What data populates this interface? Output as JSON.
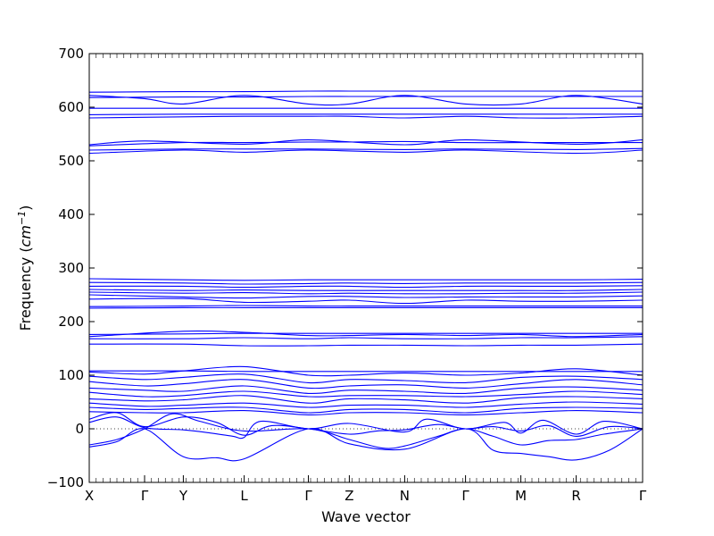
{
  "chart_data": {
    "type": "line",
    "title": "",
    "xlabel": "Wave vector",
    "ylabel": "Frequency ($cm^{-1}$)",
    "ylabel_parts": {
      "text": "Frequency (",
      "unit_base": "cm",
      "unit_exp": "−1",
      "close": ")"
    },
    "ylim": [
      -100,
      700
    ],
    "yticks": [
      -100,
      0,
      100,
      200,
      300,
      400,
      500,
      600,
      700
    ],
    "xlim": [
      0,
      10
    ],
    "kpoints": [
      {
        "label": "X",
        "x": 0
      },
      {
        "label": "Γ",
        "x": 1
      },
      {
        "label": "Y",
        "x": 1.7
      },
      {
        "label": "L",
        "x": 2.8
      },
      {
        "label": "Γ",
        "x": 3.96
      },
      {
        "label": "Z",
        "x": 4.7
      },
      {
        "label": "N",
        "x": 5.7
      },
      {
        "label": "Γ",
        "x": 6.8
      },
      {
        "label": "M",
        "x": 7.8
      },
      {
        "label": "R",
        "x": 8.8
      },
      {
        "label": "Γ",
        "x": 10
      }
    ],
    "zero_line": true,
    "line_color": "#0000ff",
    "series": [
      {
        "x": [
          0,
          1.7,
          2.8,
          3.96,
          4.7,
          5.7,
          6.8,
          7.8,
          8.8,
          10
        ],
        "y": [
          628,
          629,
          629,
          630,
          630,
          630,
          630,
          630,
          630,
          630
        ]
      },
      {
        "x": [
          0,
          1,
          1.7,
          2.8,
          3.96,
          4.7,
          5.7,
          6.8,
          7.8,
          8.8,
          10
        ],
        "y": [
          622,
          616,
          606,
          622,
          606,
          606,
          622,
          606,
          606,
          622,
          606
        ]
      },
      {
        "x": [
          0,
          1.7,
          2.8,
          3.96,
          4.7,
          5.7,
          6.8,
          7.8,
          8.8,
          10
        ],
        "y": [
          618,
          619,
          619,
          620,
          620,
          620,
          620,
          620,
          620,
          620
        ]
      },
      {
        "x": [
          0,
          1.7,
          2.8,
          3.96,
          4.7,
          5.7,
          6.8,
          7.8,
          8.8,
          10
        ],
        "y": [
          598,
          598,
          598,
          598,
          598,
          598,
          598,
          598,
          598,
          598
        ]
      },
      {
        "x": [
          0,
          1.7,
          2.8,
          3.96,
          4.7,
          5.7,
          6.8,
          7.8,
          8.8,
          10
        ],
        "y": [
          586,
          587,
          587,
          587,
          587,
          587,
          587,
          587,
          587,
          587
        ]
      },
      {
        "x": [
          0,
          1.7,
          2.8,
          3.96,
          4.7,
          5.7,
          6.8,
          7.8,
          8.8,
          10
        ],
        "y": [
          580,
          582,
          583,
          583,
          583,
          580,
          583,
          580,
          580,
          583
        ]
      },
      {
        "x": [
          0,
          1,
          2.8,
          3.96,
          5.7,
          6.8,
          8.8,
          10
        ],
        "y": [
          530,
          537,
          531,
          539,
          530,
          539,
          531,
          539
        ]
      },
      {
        "x": [
          0,
          1.7,
          2.8,
          3.96,
          4.7,
          5.7,
          6.8,
          7.8,
          8.8,
          10
        ],
        "y": [
          528,
          534,
          534,
          535,
          535,
          536,
          534,
          534,
          534,
          534
        ]
      },
      {
        "x": [
          0,
          1.7,
          2.8,
          3.96,
          5.7,
          6.8,
          8.8,
          10
        ],
        "y": [
          520,
          522,
          522,
          522,
          521,
          522,
          521,
          523
        ]
      },
      {
        "x": [
          0,
          1.7,
          2.8,
          3.96,
          5.7,
          6.8,
          8.8,
          10
        ],
        "y": [
          514,
          520,
          516,
          520,
          516,
          520,
          514,
          520
        ]
      },
      {
        "x": [
          0,
          1.7,
          2.8,
          3.96,
          4.7,
          5.7,
          6.8,
          7.8,
          8.8,
          10
        ],
        "y": [
          280,
          278,
          277,
          278,
          278,
          278,
          278,
          278,
          278,
          279
        ]
      },
      {
        "x": [
          0,
          1.7,
          2.8,
          3.96,
          4.7,
          5.7,
          6.8,
          7.8,
          8.8,
          10
        ],
        "y": [
          273,
          272,
          270,
          271,
          272,
          271,
          272,
          272,
          272,
          273
        ]
      },
      {
        "x": [
          0,
          1.7,
          2.8,
          3.96,
          4.7,
          5.7,
          6.8,
          7.8,
          8.8,
          10
        ],
        "y": [
          266,
          266,
          264,
          266,
          266,
          264,
          266,
          266,
          266,
          267
        ]
      },
      {
        "x": [
          0,
          1.7,
          2.8,
          3.96,
          4.7,
          5.7,
          6.8,
          7.8,
          8.8,
          10
        ],
        "y": [
          260,
          258,
          259,
          258,
          258,
          258,
          258,
          258,
          258,
          260
        ]
      },
      {
        "x": [
          0,
          1.7,
          2.8,
          3.96,
          4.7,
          5.7,
          6.8,
          7.8,
          8.8,
          10
        ],
        "y": [
          255,
          253,
          254,
          252,
          253,
          252,
          252,
          253,
          253,
          255
        ]
      },
      {
        "x": [
          0,
          1.7,
          2.8,
          3.96,
          4.7,
          5.7,
          6.8,
          7.8,
          8.8,
          10
        ],
        "y": [
          250,
          246,
          244,
          247,
          247,
          245,
          246,
          246,
          246,
          248
        ]
      },
      {
        "x": [
          0,
          1.7,
          2.8,
          3.96,
          4.7,
          5.7,
          6.8,
          7.8,
          8.8,
          10
        ],
        "y": [
          242,
          243,
          236,
          238,
          240,
          234,
          240,
          238,
          238,
          240
        ]
      },
      {
        "x": [
          0,
          1.7,
          2.8,
          3.96,
          4.7,
          5.7,
          6.8,
          7.8,
          8.8,
          10
        ],
        "y": [
          228,
          229,
          230,
          229,
          229,
          229,
          229,
          229,
          229,
          229
        ]
      },
      {
        "x": [
          0,
          1.7,
          2.8,
          3.96,
          4.7,
          5.7,
          6.8,
          7.8,
          8.8,
          10
        ],
        "y": [
          225,
          226,
          226,
          226,
          226,
          226,
          226,
          226,
          226,
          226
        ]
      },
      {
        "x": [
          0,
          1.7,
          2.8,
          3.96,
          4.7,
          5.7,
          6.8,
          7.8,
          8.8,
          10
        ],
        "y": [
          176,
          177,
          178,
          178,
          178,
          178,
          178,
          178,
          178,
          178
        ]
      },
      {
        "x": [
          0,
          1.7,
          2.8,
          3.96,
          4.7,
          5.7,
          6.8,
          7.8,
          8.8,
          10
        ],
        "y": [
          172,
          182,
          180,
          174,
          174,
          176,
          174,
          176,
          172,
          176
        ]
      },
      {
        "x": [
          0,
          1.7,
          2.8,
          3.96,
          4.7,
          5.7,
          6.8,
          7.8,
          8.8,
          10
        ],
        "y": [
          168,
          168,
          170,
          168,
          170,
          168,
          168,
          170,
          170,
          172
        ]
      },
      {
        "x": [
          0,
          1.7,
          2.8,
          3.96,
          4.7,
          5.7,
          6.8,
          7.8,
          8.8,
          10
        ],
        "y": [
          158,
          158,
          155,
          155,
          156,
          156,
          155,
          156,
          156,
          158
        ]
      },
      {
        "x": [
          0,
          1.7,
          2.8,
          3.96,
          4.7,
          5.7,
          6.8,
          7.8,
          8.8,
          10
        ],
        "y": [
          108,
          108,
          107,
          107,
          107,
          107,
          107,
          107,
          107,
          107
        ]
      },
      {
        "x": [
          0,
          1,
          1.7,
          2.8,
          3.96,
          4.7,
          5.7,
          6.8,
          7.8,
          8.8,
          10
        ],
        "y": [
          106,
          102,
          108,
          116,
          100,
          100,
          104,
          100,
          104,
          112,
          100
        ]
      },
      {
        "x": [
          0,
          1,
          1.7,
          2.8,
          3.96,
          4.7,
          5.7,
          6.8,
          7.8,
          8.8,
          10
        ],
        "y": [
          98,
          92,
          96,
          102,
          86,
          92,
          90,
          86,
          96,
          98,
          92
        ]
      },
      {
        "x": [
          0,
          1,
          1.7,
          2.8,
          3.96,
          4.7,
          5.7,
          6.8,
          7.8,
          8.8,
          10
        ],
        "y": [
          88,
          80,
          84,
          92,
          76,
          80,
          82,
          76,
          84,
          92,
          82
        ]
      },
      {
        "x": [
          0,
          1,
          1.7,
          2.8,
          3.96,
          4.7,
          5.7,
          6.8,
          7.8,
          8.8,
          10
        ],
        "y": [
          76,
          72,
          70,
          80,
          66,
          72,
          70,
          66,
          76,
          78,
          72
        ]
      },
      {
        "x": [
          0,
          1,
          1.7,
          2.8,
          3.96,
          4.7,
          5.7,
          6.8,
          7.8,
          8.8,
          10
        ],
        "y": [
          68,
          60,
          62,
          70,
          60,
          62,
          62,
          60,
          64,
          70,
          64
        ]
      },
      {
        "x": [
          0,
          1,
          1.7,
          2.8,
          3.96,
          4.7,
          5.7,
          6.8,
          7.8,
          8.8,
          10
        ],
        "y": [
          56,
          52,
          54,
          62,
          48,
          56,
          54,
          48,
          58,
          60,
          56
        ]
      },
      {
        "x": [
          0,
          1,
          1.7,
          2.8,
          3.96,
          4.7,
          5.7,
          6.8,
          7.8,
          8.8,
          10
        ],
        "y": [
          48,
          42,
          44,
          48,
          40,
          44,
          44,
          40,
          46,
          50,
          46
        ]
      },
      {
        "x": [
          0,
          1,
          1.7,
          2.8,
          3.96,
          4.7,
          5.7,
          6.8,
          7.8,
          8.8,
          10
        ],
        "y": [
          40,
          36,
          38,
          40,
          30,
          36,
          36,
          30,
          38,
          40,
          38
        ]
      },
      {
        "x": [
          0,
          1,
          1.7,
          2.8,
          3.96,
          4.7,
          5.7,
          6.8,
          7.8,
          8.8,
          10
        ],
        "y": [
          32,
          30,
          30,
          34,
          26,
          30,
          30,
          26,
          30,
          34,
          30
        ]
      },
      {
        "x": [
          0,
          0.5,
          1,
          1.7,
          2.2,
          2.6,
          2.8,
          3.1,
          3.96,
          4.7,
          5.7,
          6.1,
          6.8,
          7.5,
          7.8,
          8.2,
          8.8,
          9.3,
          10
        ],
        "y": [
          12,
          22,
          2,
          -2,
          -8,
          -14,
          -16,
          14,
          0,
          10,
          -6,
          18,
          0,
          12,
          -8,
          16,
          -10,
          14,
          0
        ]
      },
      {
        "x": [
          0,
          0.5,
          1,
          1.7,
          2.3,
          2.8,
          3.3,
          3.96,
          4.7,
          5.2,
          5.7,
          6.3,
          6.8,
          7.3,
          7.8,
          8.3,
          8.8,
          9.4,
          10
        ],
        "y": [
          18,
          30,
          4,
          22,
          12,
          -12,
          6,
          0,
          -10,
          -4,
          -2,
          8,
          0,
          4,
          -4,
          6,
          -14,
          4,
          0
        ]
      },
      {
        "x": [
          0,
          0.5,
          1,
          1.5,
          2,
          2.8,
          3.96,
          4.7,
          5.3,
          5.7,
          6.3,
          6.8,
          7.3,
          7.8,
          8.3,
          8.8,
          9.3,
          10
        ],
        "y": [
          -30,
          -20,
          0,
          28,
          14,
          -4,
          0,
          -20,
          -36,
          -32,
          -14,
          0,
          -14,
          -30,
          -22,
          -20,
          -10,
          0
        ]
      },
      {
        "x": [
          0,
          0.5,
          1,
          1.7,
          2.3,
          2.8,
          3.96,
          4.7,
          5.7,
          6.8,
          7.3,
          7.8,
          8.3,
          8.8,
          9.4,
          10
        ],
        "y": [
          -34,
          -24,
          0,
          -52,
          -54,
          -56,
          0,
          -28,
          -38,
          0,
          -40,
          -46,
          -52,
          -58,
          -40,
          0
        ]
      }
    ]
  }
}
